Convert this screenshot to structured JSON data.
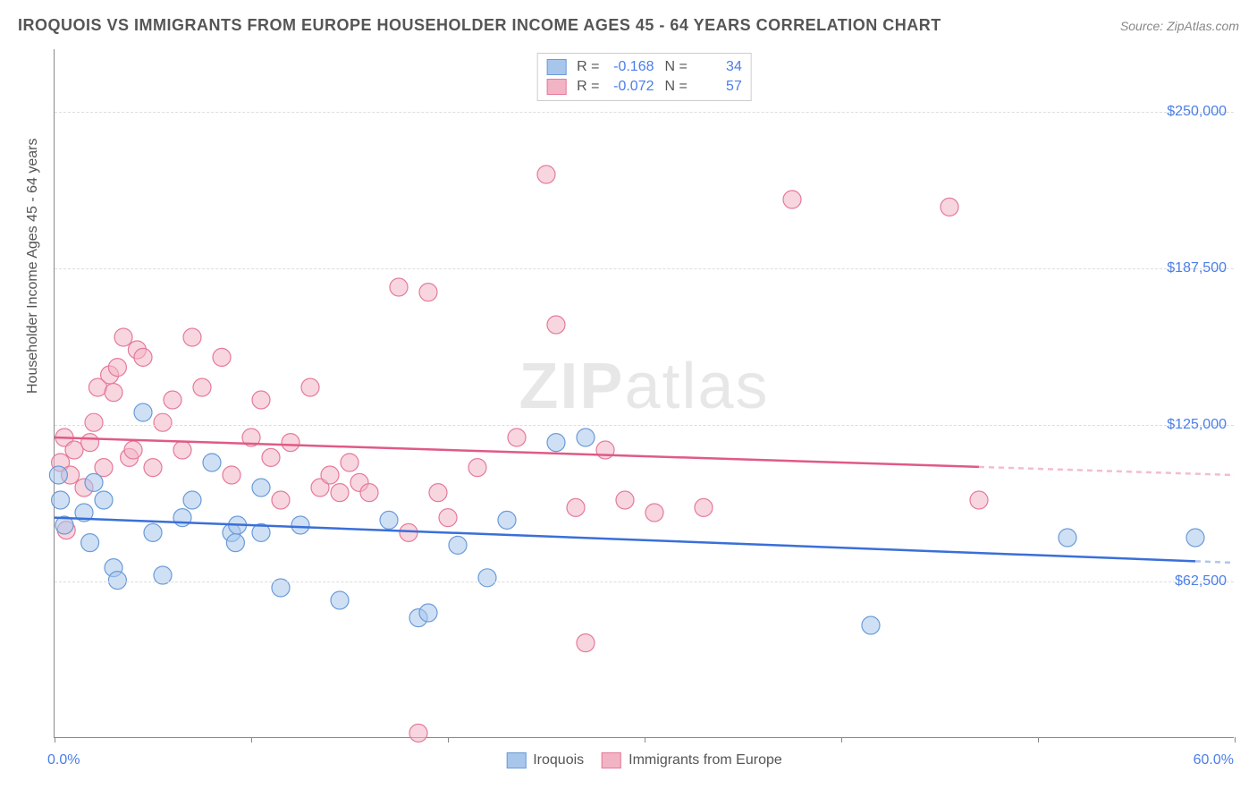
{
  "title": "IROQUOIS VS IMMIGRANTS FROM EUROPE HOUSEHOLDER INCOME AGES 45 - 64 YEARS CORRELATION CHART",
  "source": "Source: ZipAtlas.com",
  "watermark_a": "ZIP",
  "watermark_b": "atlas",
  "y_axis_title": "Householder Income Ages 45 - 64 years",
  "chart": {
    "type": "scatter",
    "background_color": "#ffffff",
    "grid_color": "#dddddd",
    "axis_color": "#888888",
    "label_color": "#4a7ee8",
    "xlim": [
      0,
      60
    ],
    "ylim": [
      0,
      275000
    ],
    "x_tick_positions": [
      0,
      10,
      20,
      30,
      40,
      50,
      60
    ],
    "x_axis_label_left": "0.0%",
    "x_axis_label_right": "60.0%",
    "y_gridlines": [
      62500,
      125000,
      187500,
      250000
    ],
    "y_tick_labels": [
      "$62,500",
      "$125,000",
      "$187,500",
      "$250,000"
    ],
    "series": [
      {
        "name": "Iroquois",
        "fill_color": "#a8c6ec",
        "fill_opacity": 0.55,
        "stroke_color": "#6a9bd8",
        "marker": "circle",
        "marker_radius": 10,
        "R": "-0.168",
        "N": "34",
        "trend": {
          "y_at_x0": 88000,
          "y_at_x60": 70000,
          "solid_until_x": 58,
          "line_width": 2.5,
          "color": "#3a6fd8"
        },
        "points": [
          [
            0.2,
            105000
          ],
          [
            0.3,
            95000
          ],
          [
            0.5,
            85000
          ],
          [
            1.5,
            90000
          ],
          [
            1.8,
            78000
          ],
          [
            2.0,
            102000
          ],
          [
            2.5,
            95000
          ],
          [
            3.0,
            68000
          ],
          [
            3.2,
            63000
          ],
          [
            4.5,
            130000
          ],
          [
            5.0,
            82000
          ],
          [
            5.5,
            65000
          ],
          [
            6.5,
            88000
          ],
          [
            7.0,
            95000
          ],
          [
            8.0,
            110000
          ],
          [
            9.0,
            82000
          ],
          [
            9.2,
            78000
          ],
          [
            9.3,
            85000
          ],
          [
            10.5,
            100000
          ],
          [
            10.5,
            82000
          ],
          [
            11.5,
            60000
          ],
          [
            12.5,
            85000
          ],
          [
            14.5,
            55000
          ],
          [
            17.0,
            87000
          ],
          [
            18.5,
            48000
          ],
          [
            19.0,
            50000
          ],
          [
            20.5,
            77000
          ],
          [
            22.0,
            64000
          ],
          [
            23.0,
            87000
          ],
          [
            25.5,
            118000
          ],
          [
            27.0,
            120000
          ],
          [
            41.5,
            45000
          ],
          [
            51.5,
            80000
          ],
          [
            58.0,
            80000
          ]
        ]
      },
      {
        "name": "Immigrants from Europe",
        "fill_color": "#f2b4c4",
        "fill_opacity": 0.55,
        "stroke_color": "#e57a9a",
        "marker": "circle",
        "marker_radius": 10,
        "R": "-0.072",
        "N": "57",
        "trend": {
          "y_at_x0": 120000,
          "y_at_x60": 105000,
          "solid_until_x": 47,
          "line_width": 2.5,
          "color": "#e05a85"
        },
        "points": [
          [
            0.3,
            110000
          ],
          [
            0.5,
            120000
          ],
          [
            0.6,
            83000
          ],
          [
            0.8,
            105000
          ],
          [
            1.0,
            115000
          ],
          [
            1.5,
            100000
          ],
          [
            1.8,
            118000
          ],
          [
            2.0,
            126000
          ],
          [
            2.2,
            140000
          ],
          [
            2.5,
            108000
          ],
          [
            2.8,
            145000
          ],
          [
            3.0,
            138000
          ],
          [
            3.2,
            148000
          ],
          [
            3.5,
            160000
          ],
          [
            3.8,
            112000
          ],
          [
            4.0,
            115000
          ],
          [
            4.2,
            155000
          ],
          [
            4.5,
            152000
          ],
          [
            5.0,
            108000
          ],
          [
            5.5,
            126000
          ],
          [
            6.0,
            135000
          ],
          [
            6.5,
            115000
          ],
          [
            7.0,
            160000
          ],
          [
            7.5,
            140000
          ],
          [
            8.5,
            152000
          ],
          [
            9.0,
            105000
          ],
          [
            10.0,
            120000
          ],
          [
            10.5,
            135000
          ],
          [
            11.0,
            112000
          ],
          [
            11.5,
            95000
          ],
          [
            12.0,
            118000
          ],
          [
            13.0,
            140000
          ],
          [
            13.5,
            100000
          ],
          [
            14.0,
            105000
          ],
          [
            14.5,
            98000
          ],
          [
            15.0,
            110000
          ],
          [
            15.5,
            102000
          ],
          [
            16.0,
            98000
          ],
          [
            17.5,
            180000
          ],
          [
            18.0,
            82000
          ],
          [
            18.5,
            2000
          ],
          [
            19.0,
            178000
          ],
          [
            19.5,
            98000
          ],
          [
            20.0,
            88000
          ],
          [
            21.5,
            108000
          ],
          [
            23.5,
            120000
          ],
          [
            25.0,
            225000
          ],
          [
            25.5,
            165000
          ],
          [
            26.5,
            92000
          ],
          [
            27.0,
            38000
          ],
          [
            28.0,
            115000
          ],
          [
            29.0,
            95000
          ],
          [
            30.5,
            90000
          ],
          [
            33.0,
            92000
          ],
          [
            37.5,
            215000
          ],
          [
            45.5,
            212000
          ],
          [
            47.0,
            95000
          ]
        ]
      }
    ]
  },
  "legend_top": {
    "R_label": "R =",
    "N_label": "N ="
  }
}
